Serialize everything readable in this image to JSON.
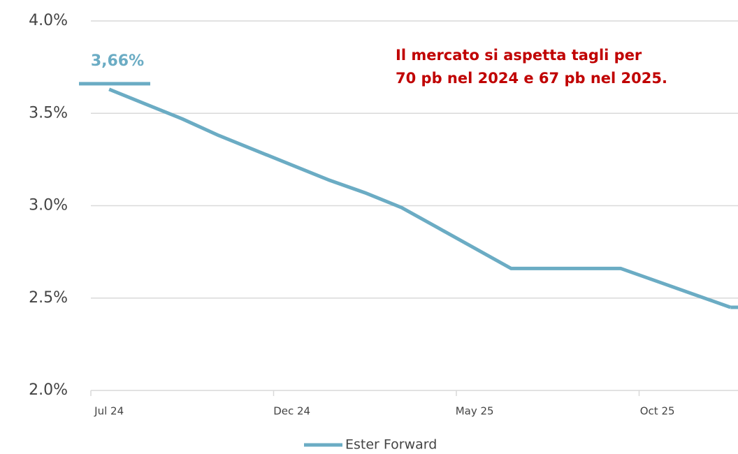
{
  "chart_data": {
    "type": "line",
    "annotation": [
      "Il mercato si aspetta tagli per",
      "70 pb nel 2024 e 67 pb nel 2025."
    ],
    "marker": {
      "value": 3.66,
      "label": "3,66%"
    },
    "categories": [
      "Jul 24",
      null,
      null,
      null,
      null,
      "Dec 24",
      null,
      null,
      null,
      null,
      "May 25",
      null,
      null,
      null,
      null,
      "Oct 25",
      null,
      null
    ],
    "series": [
      {
        "name": "Ester Forward",
        "color": "#6bacc4",
        "values": [
          3.63,
          3.55,
          3.47,
          3.38,
          3.3,
          3.22,
          3.14,
          3.07,
          2.99,
          2.88,
          2.77,
          2.66,
          2.66,
          2.66,
          2.66,
          2.59,
          2.52,
          2.45
        ]
      }
    ],
    "ylim": [
      2.0,
      4.0
    ],
    "yticks": [
      {
        "value": 2.0,
        "label": "2.0%"
      },
      {
        "value": 2.5,
        "label": "2.5%"
      },
      {
        "value": 3.0,
        "label": "3.0%"
      },
      {
        "value": 3.5,
        "label": "3.5%"
      },
      {
        "value": 4.0,
        "label": "4.0%"
      }
    ],
    "grid": true
  }
}
